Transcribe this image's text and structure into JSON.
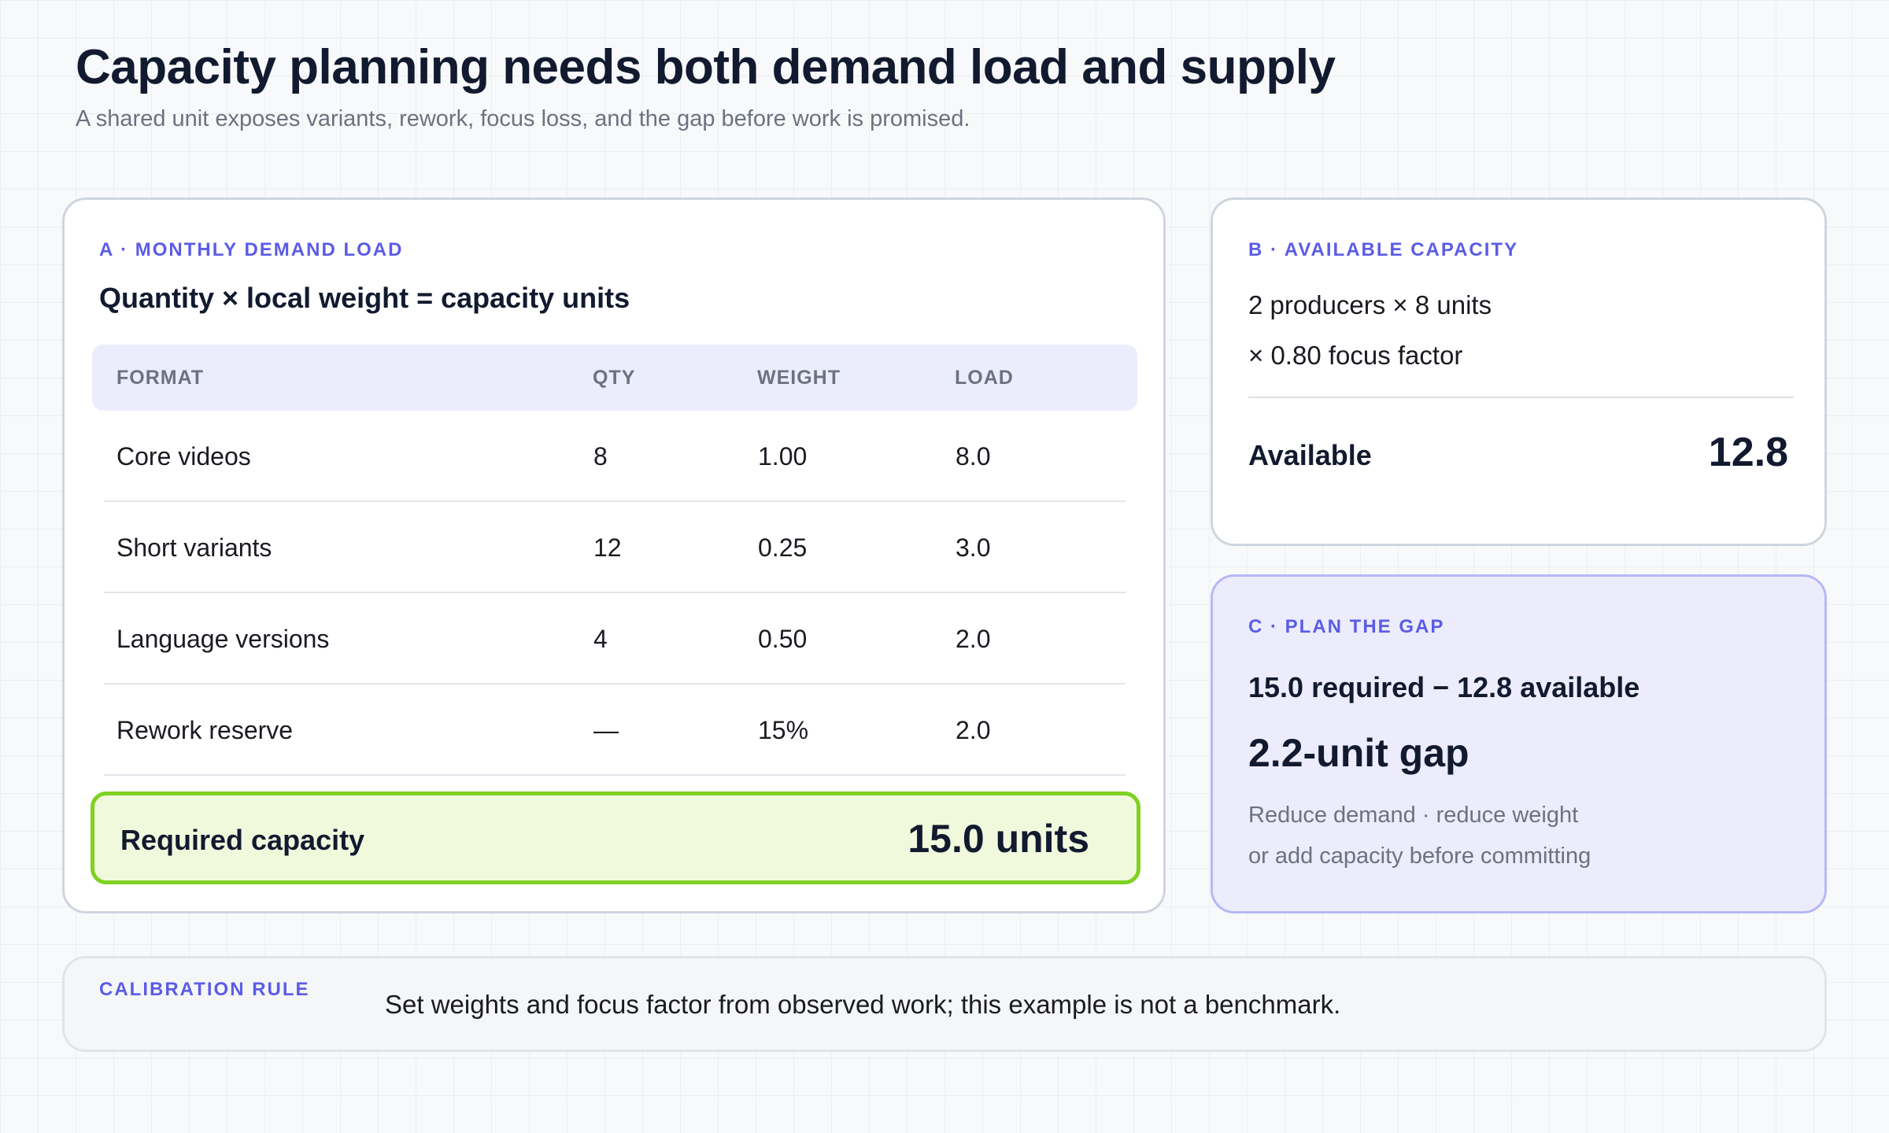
{
  "title": "Capacity planning needs both demand load and supply",
  "subtitle": "A shared unit exposes variants, rework, focus loss, and the gap before work is promised.",
  "demand": {
    "eyebrow": "A · MONTHLY DEMAND LOAD",
    "heading": "Quantity × local weight = capacity units",
    "columns": [
      "FORMAT",
      "QTY",
      "WEIGHT",
      "LOAD"
    ],
    "rows": [
      {
        "format": "Core videos",
        "qty": "8",
        "weight": "1.00",
        "load": "8.0"
      },
      {
        "format": "Short variants",
        "qty": "12",
        "weight": "0.25",
        "load": "3.0"
      },
      {
        "format": "Language versions",
        "qty": "4",
        "weight": "0.50",
        "load": "2.0"
      },
      {
        "format": "Rework reserve",
        "qty": "—",
        "weight": "15%",
        "load": "2.0"
      }
    ],
    "required_label": "Required capacity",
    "required_value": "15.0 units"
  },
  "capacity": {
    "eyebrow": "B · AVAILABLE CAPACITY",
    "line1": "2 producers × 8 units",
    "line2": "× 0.80 focus factor",
    "available_label": "Available",
    "available_value": "12.8"
  },
  "gap": {
    "eyebrow": "C · PLAN THE GAP",
    "equation": "15.0 required − 12.8 available",
    "result": "2.2-unit gap",
    "hint1": "Reduce demand · reduce weight",
    "hint2": "or add capacity before committing"
  },
  "calibration": {
    "eyebrow": "CALIBRATION RULE",
    "text": "Set weights and focus factor from observed work; this example is not a benchmark."
  },
  "colors": {
    "accent": "#5b5ce6",
    "required_border": "#7fd122",
    "required_fill": "#f1f9dd",
    "gap_fill": "#ececfc"
  }
}
